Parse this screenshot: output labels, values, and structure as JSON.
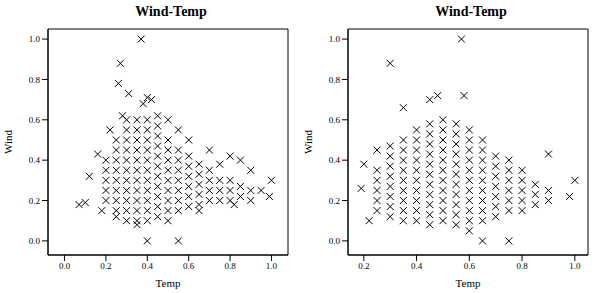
{
  "chart_data": [
    {
      "type": "scatter",
      "title": "Wind-Temp",
      "x_label": "Temp",
      "y_label": "Wind",
      "xlim": [
        -0.08,
        1.08
      ],
      "ylim": [
        -0.07,
        1.05
      ],
      "xticks": [
        {
          "value": 0,
          "label": "0.0"
        },
        0.2,
        0.4,
        0.6,
        0.8,
        {
          "value": 1,
          "label": "1.0"
        }
      ],
      "yticks": [
        {
          "value": 0,
          "label": "0.0"
        },
        0.2,
        0.4,
        0.6,
        0.8,
        {
          "value": 1,
          "label": "1.0"
        }
      ],
      "color": "#000000",
      "marker": "x",
      "x": [
        0.37,
        0.27,
        0.26,
        0.31,
        0.4,
        0.42,
        0.38,
        0.4,
        0.55,
        1.0,
        0.99,
        0.07,
        0.1,
        0.12,
        0.16,
        0.8,
        0.85,
        0.9,
        0.95,
        0.82,
        0.22,
        0.28,
        0.45,
        0.5,
        0.55,
        0.6,
        0.7,
        0.75,
        0.65,
        0.5,
        0.35,
        0.25,
        0.18,
        0.2,
        0.2,
        0.2,
        0.2,
        0.2,
        0.25,
        0.25,
        0.25,
        0.25,
        0.25,
        0.25,
        0.25,
        0.25,
        0.3,
        0.3,
        0.3,
        0.3,
        0.3,
        0.3,
        0.3,
        0.3,
        0.3,
        0.3,
        0.3,
        0.35,
        0.35,
        0.35,
        0.35,
        0.35,
        0.35,
        0.35,
        0.35,
        0.35,
        0.35,
        0.35,
        0.4,
        0.4,
        0.4,
        0.4,
        0.4,
        0.4,
        0.4,
        0.4,
        0.4,
        0.4,
        0.4,
        0.45,
        0.45,
        0.45,
        0.45,
        0.45,
        0.45,
        0.45,
        0.45,
        0.45,
        0.45,
        0.5,
        0.5,
        0.5,
        0.5,
        0.5,
        0.5,
        0.5,
        0.5,
        0.55,
        0.55,
        0.55,
        0.55,
        0.55,
        0.55,
        0.55,
        0.6,
        0.6,
        0.6,
        0.6,
        0.6,
        0.6,
        0.65,
        0.65,
        0.65,
        0.65,
        0.65,
        0.7,
        0.7,
        0.7,
        0.7,
        0.75,
        0.75,
        0.75,
        0.8,
        0.8,
        0.8,
        0.85,
        0.85,
        0.9,
        0.9
      ],
      "values": [
        1.0,
        0.88,
        0.78,
        0.73,
        0.71,
        0.7,
        0.68,
        0.0,
        0.0,
        0.3,
        0.22,
        0.18,
        0.19,
        0.32,
        0.43,
        0.42,
        0.4,
        0.35,
        0.25,
        0.18,
        0.55,
        0.62,
        0.62,
        0.6,
        0.55,
        0.5,
        0.45,
        0.38,
        0.15,
        0.1,
        0.08,
        0.12,
        0.15,
        0.2,
        0.25,
        0.3,
        0.35,
        0.4,
        0.15,
        0.2,
        0.25,
        0.3,
        0.35,
        0.4,
        0.45,
        0.5,
        0.1,
        0.15,
        0.2,
        0.25,
        0.3,
        0.35,
        0.4,
        0.45,
        0.5,
        0.55,
        0.6,
        0.1,
        0.15,
        0.2,
        0.25,
        0.3,
        0.35,
        0.4,
        0.45,
        0.5,
        0.55,
        0.6,
        0.1,
        0.15,
        0.2,
        0.25,
        0.3,
        0.35,
        0.4,
        0.45,
        0.5,
        0.55,
        0.6,
        0.12,
        0.17,
        0.22,
        0.27,
        0.32,
        0.37,
        0.42,
        0.47,
        0.52,
        0.57,
        0.15,
        0.2,
        0.25,
        0.3,
        0.35,
        0.4,
        0.45,
        0.5,
        0.15,
        0.2,
        0.25,
        0.3,
        0.35,
        0.4,
        0.45,
        0.17,
        0.22,
        0.27,
        0.32,
        0.37,
        0.42,
        0.18,
        0.23,
        0.28,
        0.33,
        0.38,
        0.2,
        0.25,
        0.3,
        0.35,
        0.2,
        0.25,
        0.3,
        0.2,
        0.25,
        0.3,
        0.22,
        0.27,
        0.2,
        0.25
      ]
    },
    {
      "type": "scatter",
      "title": "Wind-Temp",
      "x_label": "Temp",
      "y_label": "Wind",
      "xlim": [
        0.14,
        1.05
      ],
      "ylim": [
        -0.07,
        1.05
      ],
      "xticks": [
        0.2,
        0.4,
        0.6,
        0.8,
        {
          "value": 1,
          "label": "1.0"
        }
      ],
      "yticks": [
        {
          "value": 0,
          "label": "0.0"
        },
        0.2,
        0.4,
        0.6,
        0.8,
        {
          "value": 1,
          "label": "1.0"
        }
      ],
      "color": "#000000",
      "marker": "x",
      "x": [
        0.57,
        0.3,
        0.48,
        0.58,
        0.45,
        0.35,
        0.2,
        0.19,
        1.0,
        0.98,
        0.9,
        0.65,
        0.6,
        0.75,
        0.22,
        0.25,
        0.25,
        0.25,
        0.25,
        0.25,
        0.25,
        0.3,
        0.3,
        0.3,
        0.3,
        0.3,
        0.3,
        0.3,
        0.3,
        0.35,
        0.35,
        0.35,
        0.35,
        0.35,
        0.35,
        0.35,
        0.35,
        0.35,
        0.4,
        0.4,
        0.4,
        0.4,
        0.4,
        0.4,
        0.4,
        0.4,
        0.4,
        0.4,
        0.45,
        0.45,
        0.45,
        0.45,
        0.45,
        0.45,
        0.45,
        0.45,
        0.45,
        0.45,
        0.45,
        0.5,
        0.5,
        0.5,
        0.5,
        0.5,
        0.5,
        0.5,
        0.5,
        0.5,
        0.5,
        0.5,
        0.55,
        0.55,
        0.55,
        0.55,
        0.55,
        0.55,
        0.55,
        0.55,
        0.55,
        0.55,
        0.55,
        0.6,
        0.6,
        0.6,
        0.6,
        0.6,
        0.6,
        0.6,
        0.6,
        0.6,
        0.6,
        0.65,
        0.65,
        0.65,
        0.65,
        0.65,
        0.65,
        0.65,
        0.65,
        0.65,
        0.7,
        0.7,
        0.7,
        0.7,
        0.7,
        0.7,
        0.7,
        0.75,
        0.75,
        0.75,
        0.75,
        0.75,
        0.75,
        0.8,
        0.8,
        0.8,
        0.8,
        0.8,
        0.85,
        0.85,
        0.85,
        0.9,
        0.9
      ],
      "values": [
        1.0,
        0.88,
        0.72,
        0.72,
        0.7,
        0.66,
        0.38,
        0.26,
        0.3,
        0.22,
        0.43,
        0.0,
        0.05,
        0.0,
        0.1,
        0.45,
        0.15,
        0.2,
        0.25,
        0.3,
        0.35,
        0.12,
        0.17,
        0.22,
        0.27,
        0.32,
        0.37,
        0.42,
        0.47,
        0.1,
        0.15,
        0.2,
        0.25,
        0.3,
        0.35,
        0.4,
        0.45,
        0.5,
        0.1,
        0.15,
        0.2,
        0.25,
        0.3,
        0.35,
        0.4,
        0.45,
        0.5,
        0.55,
        0.08,
        0.13,
        0.18,
        0.23,
        0.28,
        0.33,
        0.38,
        0.43,
        0.48,
        0.53,
        0.58,
        0.1,
        0.15,
        0.2,
        0.25,
        0.3,
        0.35,
        0.4,
        0.45,
        0.5,
        0.55,
        0.6,
        0.08,
        0.13,
        0.18,
        0.23,
        0.28,
        0.33,
        0.38,
        0.43,
        0.48,
        0.53,
        0.58,
        0.1,
        0.15,
        0.2,
        0.25,
        0.3,
        0.35,
        0.4,
        0.45,
        0.5,
        0.55,
        0.1,
        0.15,
        0.2,
        0.25,
        0.3,
        0.35,
        0.4,
        0.45,
        0.5,
        0.12,
        0.17,
        0.22,
        0.27,
        0.32,
        0.37,
        0.42,
        0.15,
        0.2,
        0.25,
        0.3,
        0.35,
        0.4,
        0.15,
        0.2,
        0.25,
        0.3,
        0.35,
        0.18,
        0.23,
        0.28,
        0.2,
        0.25
      ]
    }
  ]
}
